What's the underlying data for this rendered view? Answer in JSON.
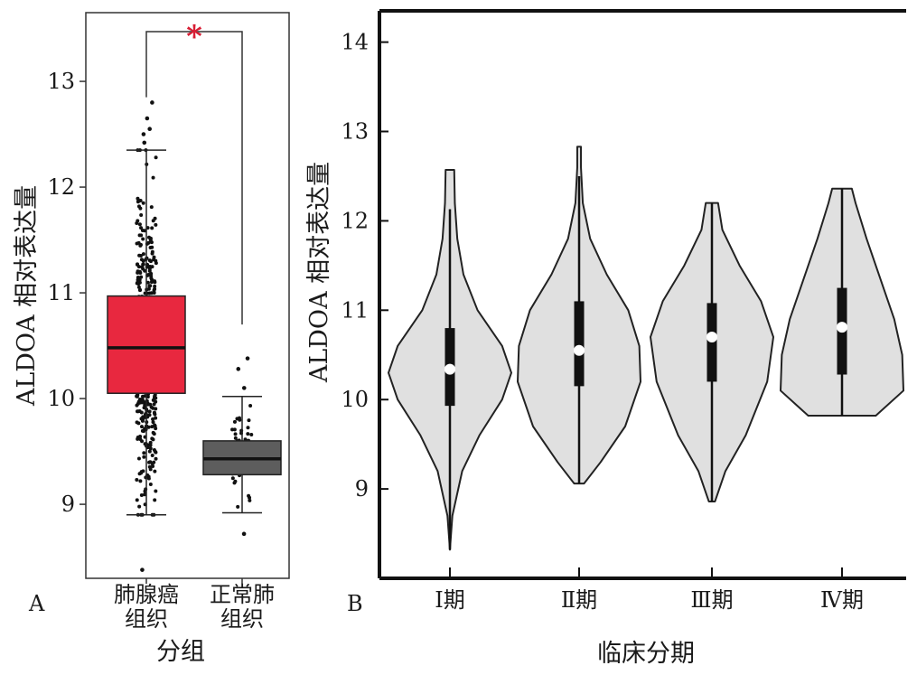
{
  "chart_data": [
    {
      "panel_label": "A",
      "type": "box",
      "ylabel": "ALDOA 相对表达量",
      "xlabel": "分组",
      "ylim": [
        8.3,
        13.65
      ],
      "yticks": [
        9,
        10,
        11,
        12,
        13
      ],
      "significance": "*",
      "grid": false,
      "groups": [
        {
          "label_lines": [
            "肺腺癌",
            "组织"
          ],
          "color": "#e8283f",
          "whisker_low": 8.9,
          "q1": 10.05,
          "median": 10.48,
          "q3": 10.97,
          "whisker_high": 12.35,
          "outliers": [
            8.38,
            12.55,
            12.5,
            12.65,
            12.8,
            12.42
          ],
          "point_count": 500
        },
        {
          "label_lines": [
            "正常肺",
            "组织"
          ],
          "color": "#5d5d5d",
          "whisker_low": 8.92,
          "q1": 9.28,
          "median": 9.43,
          "q3": 9.6,
          "whisker_high": 10.02,
          "outliers": [
            8.72,
            10.38,
            10.28,
            10.1
          ],
          "point_count": 58
        }
      ]
    },
    {
      "panel_label": "B",
      "type": "violin",
      "ylabel": "ALDOA 相对表达量",
      "xlabel": "临床分期",
      "ylim": [
        8.0,
        14.35
      ],
      "yticks": [
        9,
        10,
        11,
        12,
        13,
        14
      ],
      "grid": false,
      "fill_color": "#e0e0e0",
      "groups": [
        {
          "label": "Ⅰ期",
          "min": 8.32,
          "q1": 9.93,
          "median": 10.34,
          "q3": 10.8,
          "max": 12.57,
          "whisker_high": 12.13
        },
        {
          "label": "Ⅱ期",
          "min": 9.06,
          "q1": 10.15,
          "median": 10.55,
          "q3": 11.1,
          "max": 12.83,
          "whisker_high": 12.5
        },
        {
          "label": "Ⅲ期",
          "min": 8.86,
          "q1": 10.2,
          "median": 10.7,
          "q3": 11.08,
          "max": 12.2,
          "whisker_high": 12.2
        },
        {
          "label": "Ⅳ期",
          "min": 9.82,
          "q1": 10.28,
          "median": 10.81,
          "q3": 11.25,
          "max": 12.36,
          "whisker_high": 12.36
        }
      ]
    }
  ]
}
